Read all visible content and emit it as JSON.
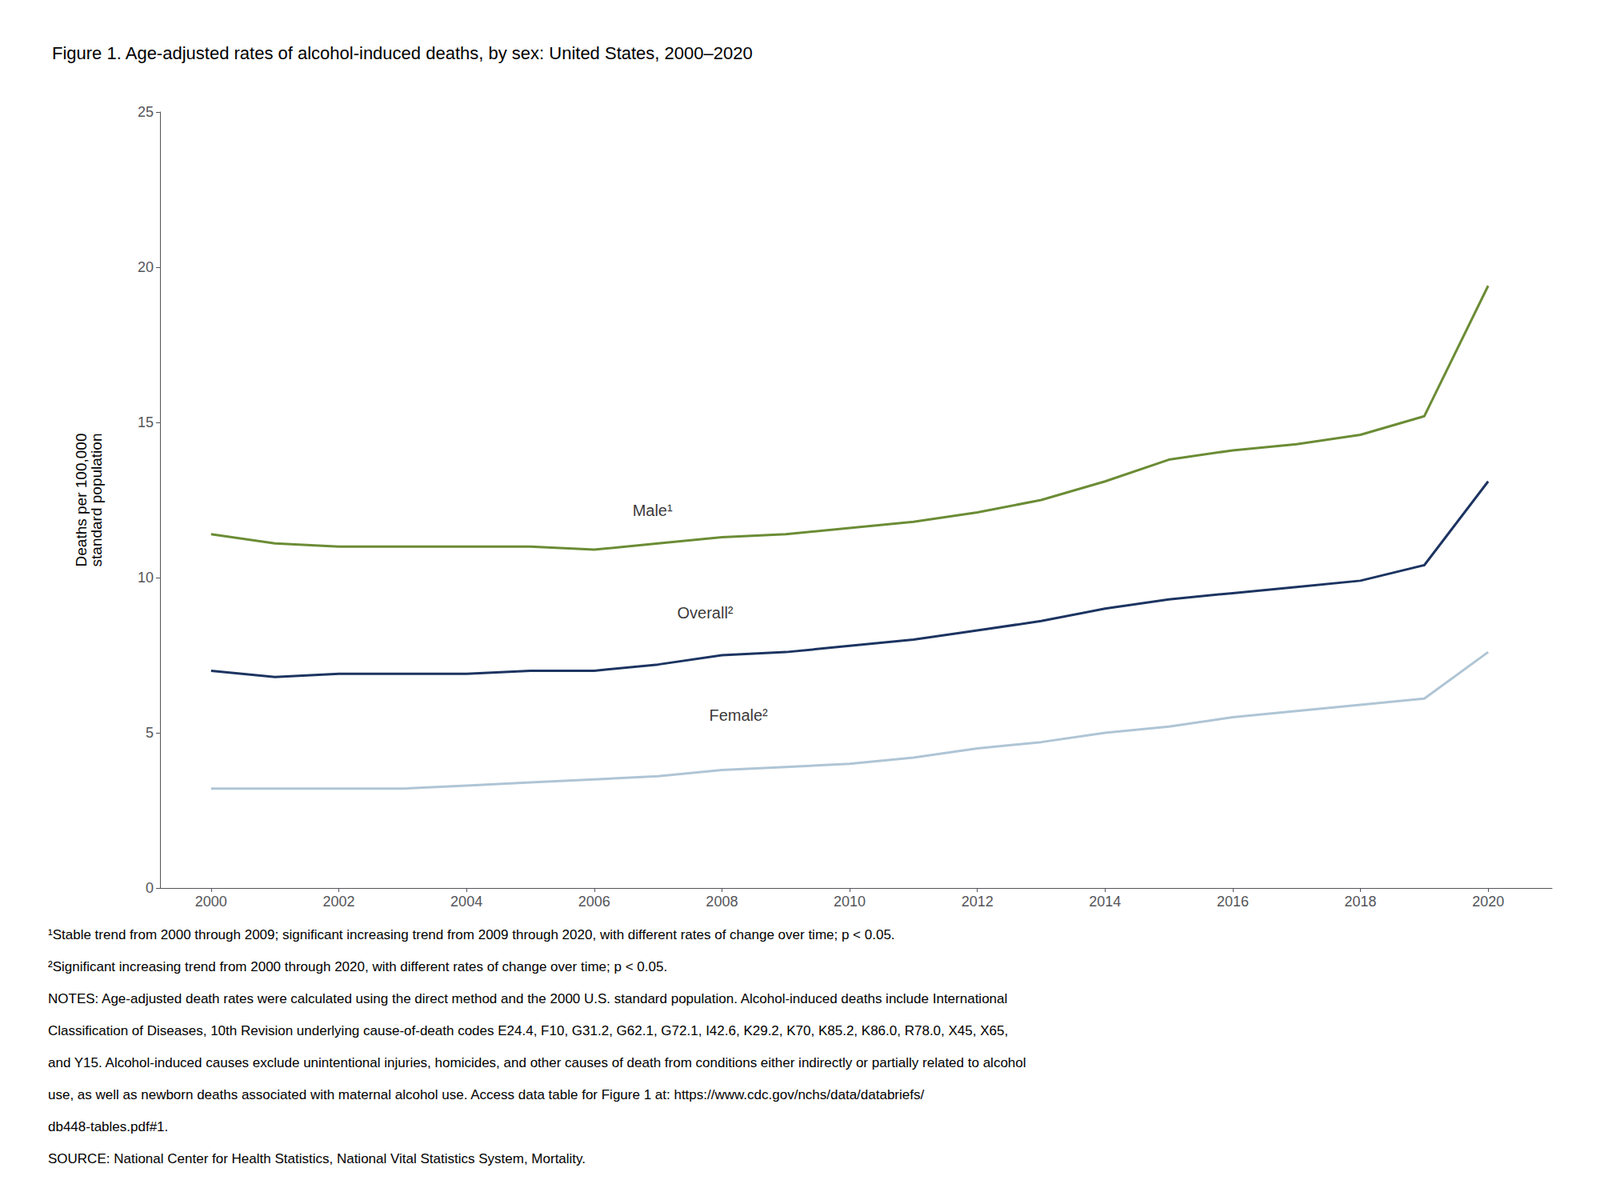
{
  "chart_data": {
    "type": "line",
    "title": "Figure 1. Age-adjusted rates of alcohol-induced deaths, by sex: United States, 2000–2020",
    "y_label": "Deaths per 100,000\nstandard population",
    "x": [
      2000,
      2001,
      2002,
      2003,
      2004,
      2005,
      2006,
      2007,
      2008,
      2009,
      2010,
      2011,
      2012,
      2013,
      2014,
      2015,
      2016,
      2017,
      2018,
      2019,
      2020
    ],
    "series": [
      {
        "color": "#6b8c35",
        "values": [
          11.4,
          11.1,
          11.0,
          11.0,
          11.0,
          11.0,
          10.9,
          11.1,
          11.3,
          11.4,
          11.6,
          11.8,
          12.1,
          12.5,
          13.1,
          13.8,
          14.1,
          14.3,
          14.6,
          15.2,
          19.4
        ]
      },
      {
        "color": "#1c3461",
        "values": [
          7.0,
          6.8,
          6.9,
          6.9,
          6.9,
          7.0,
          7.0,
          7.2,
          7.5,
          7.6,
          7.8,
          8.0,
          8.3,
          8.6,
          9.0,
          9.3,
          9.5,
          9.7,
          9.9,
          10.4,
          13.1
        ]
      },
      {
        "color": "#afc5d5",
        "values": [
          3.2,
          3.2,
          3.2,
          3.2,
          3.3,
          3.4,
          3.5,
          3.6,
          3.8,
          3.9,
          4.0,
          4.2,
          4.5,
          4.7,
          5.0,
          5.2,
          5.5,
          5.7,
          5.9,
          6.1,
          7.6
        ]
      }
    ],
    "xlim": [
      1999.2,
      2021.0
    ],
    "xticks": [
      2000,
      2002,
      2004,
      2006,
      2008,
      2010,
      2012,
      2014,
      2016,
      2018,
      2020
    ],
    "ylim": [
      0,
      25
    ],
    "yticks": [
      0,
      5,
      10,
      15,
      20,
      25
    ],
    "grid": false,
    "annotations": [
      {
        "text": "Male¹",
        "x": 2006.6,
        "y": 11.85
      },
      {
        "text": "Overall²",
        "x": 2007.3,
        "y": 8.55
      },
      {
        "text": "Female²",
        "x": 2007.8,
        "y": 5.25
      }
    ],
    "footnotes": [
      "¹Stable trend from 2000 through 2009; significant increasing trend from 2009 through 2020, with different rates of change over time; p < 0.05.",
      "²Significant increasing trend from 2000 through 2020, with different rates of change over time; p < 0.05.",
      "NOTES: Age-adjusted death rates were calculated using the direct method and the 2000 U.S. standard population. Alcohol-induced deaths include International",
      "Classification of Diseases, 10th Revision underlying cause-of-death codes E24.4, F10, G31.2, G62.1, G72.1, I42.6, K29.2, K70, K85.2, K86.0, R78.0, X45, X65,",
      "and Y15. Alcohol-induced causes exclude unintentional injuries, homicides, and other causes of death from conditions either indirectly or partially related to alcohol",
      "use, as well as newborn deaths associated with maternal alcohol use. Access data table for Figure 1 at: https://www.cdc.gov/nchs/data/databriefs/",
      "db448-tables.pdf#1.",
      "SOURCE: National Center for Health Statistics, National Vital Statistics System, Mortality."
    ]
  }
}
